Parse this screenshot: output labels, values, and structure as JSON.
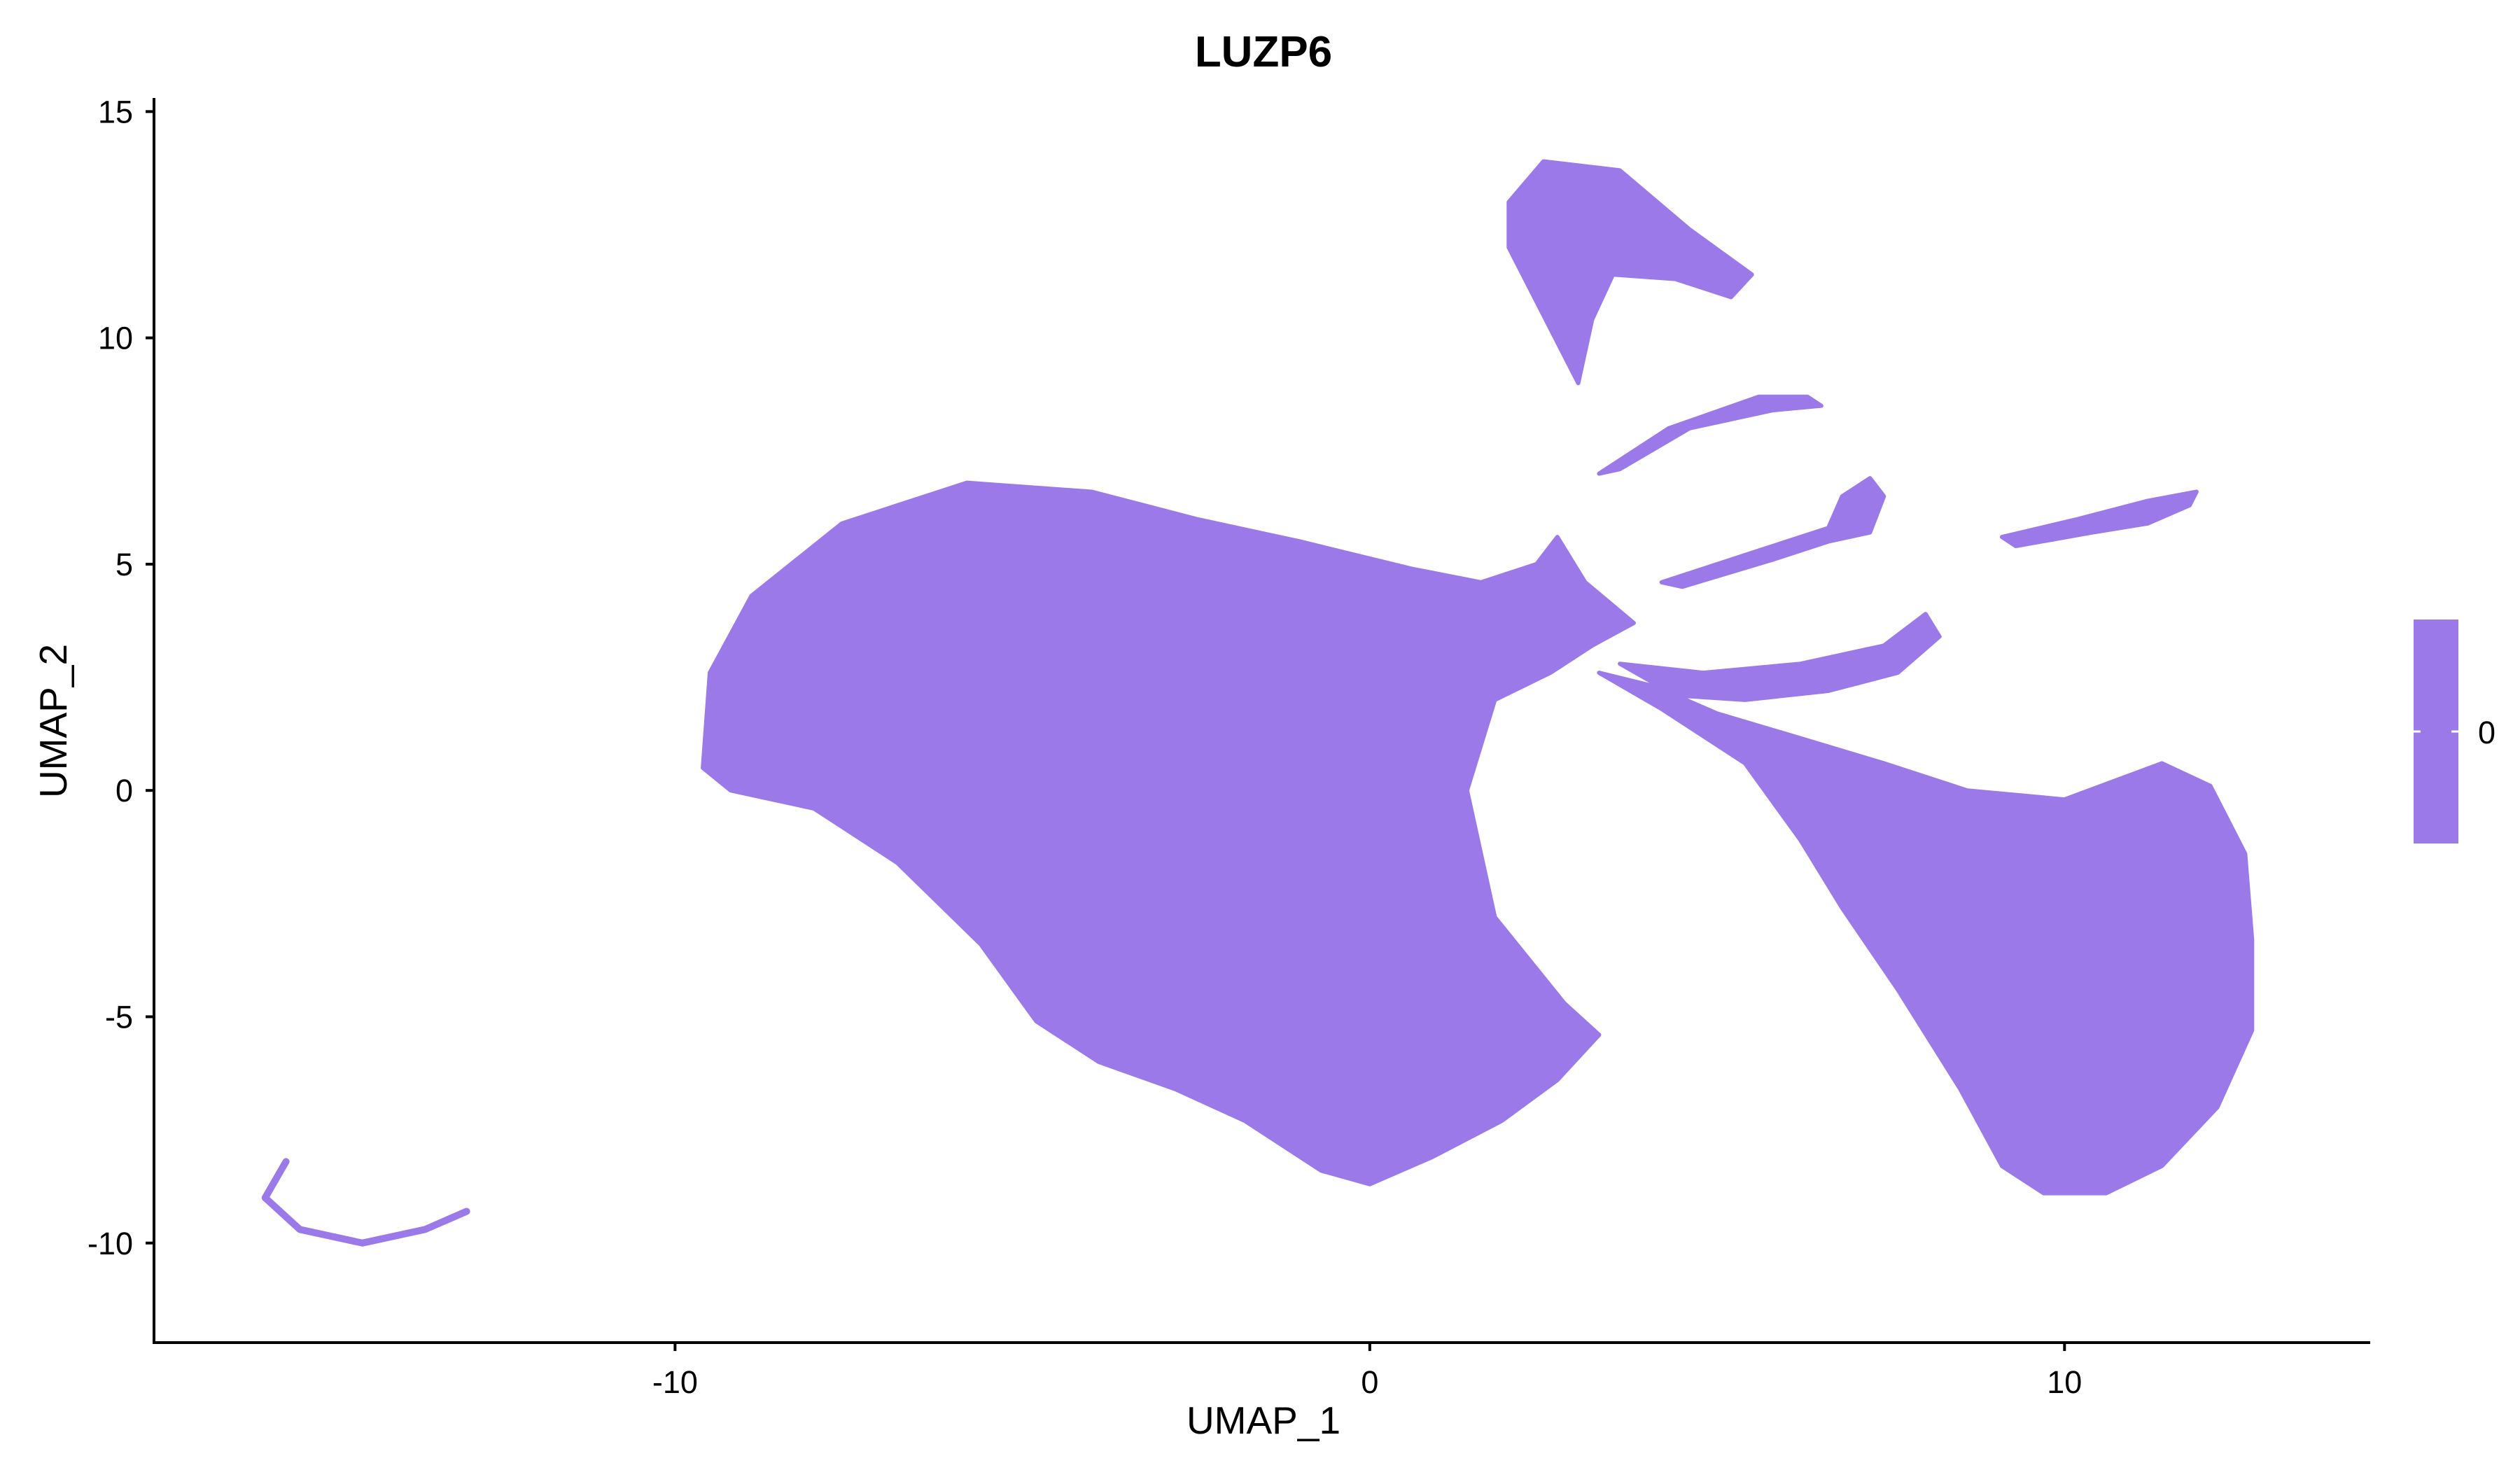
{
  "chart_data": {
    "type": "scatter",
    "title": "LUZP6",
    "xlabel": "UMAP_1",
    "ylabel": "UMAP_2",
    "xlim": [
      -17.5,
      14.4
    ],
    "ylim": [
      -12.2,
      15.3
    ],
    "x_ticks": [
      -10,
      0,
      10
    ],
    "y_ticks": [
      -10,
      -5,
      0,
      5,
      10,
      15
    ],
    "x_tick_labels": [
      "-10",
      "0",
      "10"
    ],
    "y_tick_labels": [
      "-10",
      "-5",
      "0",
      "5",
      "10",
      "15"
    ],
    "point_color": "#9b79e9",
    "grid": false,
    "legend": {
      "placement": "right",
      "type": "colorbar",
      "labels": [
        "0"
      ],
      "color": "#9b79e9"
    },
    "series": [
      {
        "values": "expression = 0 for all cells",
        "regions": [
          {
            "shape": "polygon",
            "points": [
              [
                -9.6,
                0.5
              ],
              [
                -9.5,
                2.6
              ],
              [
                -8.9,
                4.3
              ],
              [
                -7.6,
                5.9
              ],
              [
                -5.8,
                6.8
              ],
              [
                -4.0,
                6.6
              ],
              [
                -2.5,
                6.0
              ],
              [
                -1.0,
                5.5
              ],
              [
                0.6,
                4.9
              ],
              [
                1.6,
                4.6
              ],
              [
                2.4,
                5.0
              ],
              [
                2.7,
                5.6
              ],
              [
                3.1,
                4.6
              ],
              [
                3.8,
                3.7
              ],
              [
                3.2,
                3.2
              ],
              [
                2.6,
                2.6
              ],
              [
                1.8,
                2.0
              ],
              [
                1.4,
                0.0
              ],
              [
                1.8,
                -2.8
              ],
              [
                2.8,
                -4.7
              ],
              [
                3.3,
                -5.4
              ],
              [
                2.7,
                -6.4
              ],
              [
                1.9,
                -7.3
              ],
              [
                0.9,
                -8.1
              ],
              [
                0.0,
                -8.7
              ],
              [
                -0.7,
                -8.4
              ],
              [
                -1.8,
                -7.3
              ],
              [
                -2.8,
                -6.6
              ],
              [
                -3.9,
                -6.0
              ],
              [
                -4.8,
                -5.1
              ],
              [
                -5.6,
                -3.4
              ],
              [
                -6.8,
                -1.6
              ],
              [
                -8.0,
                -0.4
              ],
              [
                -9.2,
                0.0
              ]
            ]
          },
          {
            "shape": "polygon",
            "points": [
              [
                3.3,
                2.6
              ],
              [
                4.2,
                1.8
              ],
              [
                5.4,
                0.6
              ],
              [
                6.2,
                -1.1
              ],
              [
                6.8,
                -2.6
              ],
              [
                7.6,
                -4.4
              ],
              [
                8.5,
                -6.6
              ],
              [
                9.1,
                -8.3
              ],
              [
                9.7,
                -8.9
              ],
              [
                10.6,
                -8.9
              ],
              [
                11.4,
                -8.3
              ],
              [
                12.2,
                -7.0
              ],
              [
                12.7,
                -5.3
              ],
              [
                12.7,
                -3.3
              ],
              [
                12.6,
                -1.4
              ],
              [
                12.1,
                0.1
              ],
              [
                11.4,
                0.6
              ],
              [
                10.0,
                -0.2
              ],
              [
                8.6,
                0.0
              ],
              [
                7.4,
                0.6
              ],
              [
                6.1,
                1.2
              ],
              [
                5.0,
                1.7
              ],
              [
                4.1,
                2.3
              ]
            ]
          },
          {
            "shape": "polygon",
            "points": [
              [
                3.6,
                2.8
              ],
              [
                4.8,
                2.6
              ],
              [
                6.2,
                2.8
              ],
              [
                7.4,
                3.2
              ],
              [
                8.0,
                3.9
              ],
              [
                8.2,
                3.4
              ],
              [
                7.6,
                2.6
              ],
              [
                6.6,
                2.2
              ],
              [
                5.4,
                2.0
              ],
              [
                4.4,
                2.1
              ]
            ]
          },
          {
            "shape": "polygon",
            "points": [
              [
                2.0,
                13.0
              ],
              [
                2.5,
                13.9
              ],
              [
                3.6,
                13.7
              ],
              [
                4.6,
                12.4
              ],
              [
                5.5,
                11.4
              ],
              [
                5.2,
                10.9
              ],
              [
                4.4,
                11.3
              ],
              [
                3.5,
                11.4
              ],
              [
                3.2,
                10.4
              ],
              [
                3.0,
                9.0
              ],
              [
                2.6,
                10.2
              ],
              [
                2.0,
                12.0
              ]
            ]
          },
          {
            "shape": "polygon",
            "points": [
              [
                3.3,
                7.0
              ],
              [
                4.3,
                8.0
              ],
              [
                5.6,
                8.7
              ],
              [
                6.3,
                8.7
              ],
              [
                6.5,
                8.5
              ],
              [
                5.8,
                8.4
              ],
              [
                4.6,
                8.0
              ],
              [
                3.6,
                7.1
              ]
            ]
          },
          {
            "shape": "polygon",
            "points": [
              [
                4.2,
                4.6
              ],
              [
                5.6,
                5.3
              ],
              [
                6.6,
                5.8
              ],
              [
                6.8,
                6.5
              ],
              [
                7.2,
                6.9
              ],
              [
                7.4,
                6.5
              ],
              [
                7.2,
                5.7
              ],
              [
                6.6,
                5.5
              ],
              [
                5.8,
                5.1
              ],
              [
                4.5,
                4.5
              ]
            ]
          },
          {
            "shape": "polygon",
            "points": [
              [
                9.1,
                5.6
              ],
              [
                10.2,
                6.0
              ],
              [
                11.2,
                6.4
              ],
              [
                11.9,
                6.6
              ],
              [
                11.8,
                6.3
              ],
              [
                11.2,
                5.9
              ],
              [
                10.4,
                5.7
              ],
              [
                9.3,
                5.4
              ]
            ]
          },
          {
            "shape": "arc",
            "points": [
              [
                -15.6,
                -8.2
              ],
              [
                -15.9,
                -9.0
              ],
              [
                -15.4,
                -9.7
              ],
              [
                -14.5,
                -10.0
              ],
              [
                -13.6,
                -9.7
              ],
              [
                -13.0,
                -9.3
              ]
            ]
          }
        ]
      }
    ]
  }
}
